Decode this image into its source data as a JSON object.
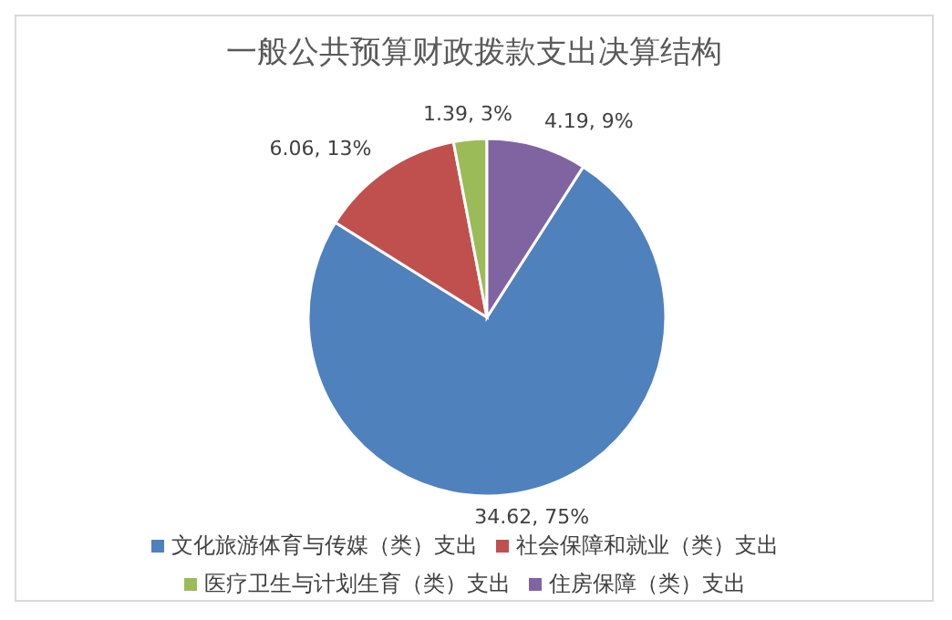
{
  "chart_data": {
    "type": "pie",
    "title": "一般公共预算财政拨款支出决算结构",
    "categories": [
      "文化旅游体育与传媒（类）支出",
      "社会保障和就业（类）支出",
      "医疗卫生与计划生育（类）支出",
      "住房保障（类）支出"
    ],
    "values": [
      34.62,
      6.06,
      1.39,
      4.19
    ],
    "colors": [
      "#4f81bd",
      "#c0504d",
      "#9bbb59",
      "#8064a2"
    ],
    "value_labels": [
      "34.62, 75%",
      "6.06, 13%",
      "1.39, 3%",
      "4.19, 9%"
    ],
    "legend": "bottom"
  }
}
